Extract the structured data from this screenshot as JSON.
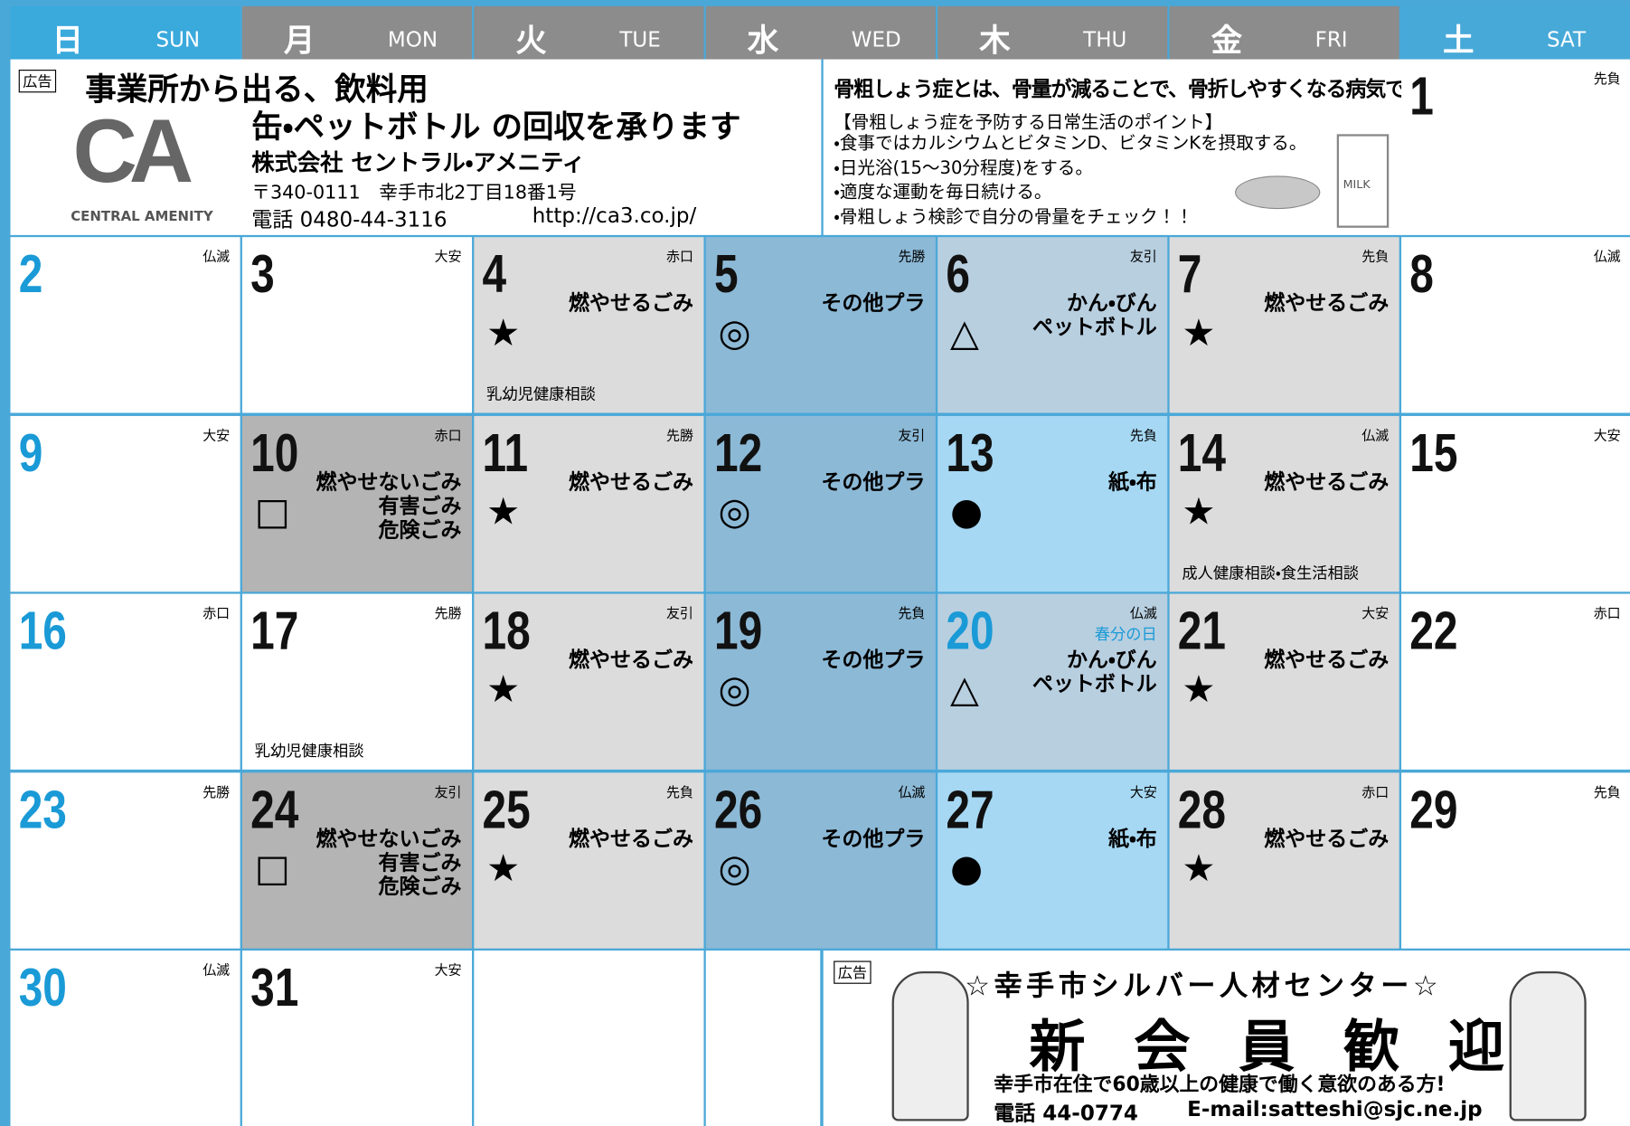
{
  "header": {
    "days": [
      {
        "jp": "日",
        "en": "SUN"
      },
      {
        "jp": "月",
        "en": "MON"
      },
      {
        "jp": "火",
        "en": "TUE"
      },
      {
        "jp": "水",
        "en": "WED"
      },
      {
        "jp": "木",
        "en": "THU"
      },
      {
        "jp": "金",
        "en": "FRI"
      },
      {
        "jp": "土",
        "en": "SAT"
      }
    ]
  },
  "ad_top": {
    "tag": "広告",
    "line1": "事業所から出る、飲料用",
    "line2": "缶・ペットボトル の回収を承ります",
    "company": "株式会社 セントラル・アメニティ",
    "address": "〒340-0111　幸手市北2丁目18番1号",
    "phone": "電話 0480-44-3116",
    "url": "http://ca3.co.jp/",
    "logo": "CA",
    "logo_name": "CENTRAL AMENITY"
  },
  "health": {
    "title": "骨粗しょう症とは、骨量が減ることで、骨折しやすくなる病気です。",
    "heading": "【骨粗しょう症を予防する日常生活のポイント】",
    "points": [
      "・食事ではカルシウムとビタミンD、ビタミンKを摂取する。",
      "・日光浴(15～30分程度)をする。",
      "・適度な運動を毎日続ける。",
      "・骨粗しょう検診で自分の骨量をチェック！！"
    ],
    "milk": "MILK"
  },
  "cells": [
    {
      "row": 0,
      "col": 6,
      "day": "1",
      "rokuyo": "先負",
      "bg": "#ffffff"
    },
    {
      "row": 1,
      "col": 0,
      "day": "2",
      "rokuyo": "仏滅",
      "bg": "#ffffff"
    },
    {
      "row": 1,
      "col": 1,
      "day": "3",
      "rokuyo": "大安",
      "bg": "#ffffff"
    },
    {
      "row": 1,
      "col": 2,
      "day": "4",
      "rokuyo": "赤口",
      "items": [
        "燃やせるごみ"
      ],
      "mark": "★",
      "note": "乳幼児健康相談",
      "bg": "#dcdcdc"
    },
    {
      "row": 1,
      "col": 3,
      "day": "5",
      "rokuyo": "先勝",
      "items": [
        "その他プラ"
      ],
      "mark": "◎",
      "bg": "#8cb9d6"
    },
    {
      "row": 1,
      "col": 4,
      "day": "6",
      "rokuyo": "友引",
      "items": [
        "かん・びん",
        "ペットボトル"
      ],
      "mark": "△",
      "bg": "#b8cfe0"
    },
    {
      "row": 1,
      "col": 5,
      "day": "7",
      "rokuyo": "先負",
      "items": [
        "燃やせるごみ"
      ],
      "mark": "★",
      "bg": "#dcdcdc"
    },
    {
      "row": 1,
      "col": 6,
      "day": "8",
      "rokuyo": "仏滅",
      "bg": "#ffffff"
    },
    {
      "row": 2,
      "col": 0,
      "day": "9",
      "rokuyo": "大安",
      "bg": "#ffffff"
    },
    {
      "row": 2,
      "col": 1,
      "day": "10",
      "rokuyo": "赤口",
      "items": [
        "燃やせないごみ",
        "有害ごみ",
        "危険ごみ"
      ],
      "mark": "□",
      "bg": "#b4b4b4"
    },
    {
      "row": 2,
      "col": 2,
      "day": "11",
      "rokuyo": "先勝",
      "items": [
        "燃やせるごみ"
      ],
      "mark": "★",
      "bg": "#dcdcdc"
    },
    {
      "row": 2,
      "col": 3,
      "day": "12",
      "rokuyo": "友引",
      "items": [
        "その他プラ"
      ],
      "mark": "◎",
      "bg": "#8cb9d6"
    },
    {
      "row": 2,
      "col": 4,
      "day": "13",
      "rokuyo": "先負",
      "items": [
        "紙・布"
      ],
      "mark": "●",
      "bg": "#a6d8f3"
    },
    {
      "row": 2,
      "col": 5,
      "day": "14",
      "rokuyo": "仏滅",
      "items": [
        "燃やせるごみ"
      ],
      "mark": "★",
      "note": "成人健康相談・食生活相談",
      "bg": "#dcdcdc"
    },
    {
      "row": 2,
      "col": 6,
      "day": "15",
      "rokuyo": "大安",
      "bg": "#ffffff"
    },
    {
      "row": 3,
      "col": 0,
      "day": "16",
      "rokuyo": "赤口",
      "bg": "#ffffff"
    },
    {
      "row": 3,
      "col": 1,
      "day": "17",
      "rokuyo": "先勝",
      "note": "乳幼児健康相談",
      "bg": "#ffffff"
    },
    {
      "row": 3,
      "col": 2,
      "day": "18",
      "rokuyo": "友引",
      "items": [
        "燃やせるごみ"
      ],
      "mark": "★",
      "bg": "#dcdcdc"
    },
    {
      "row": 3,
      "col": 3,
      "day": "19",
      "rokuyo": "先負",
      "items": [
        "その他プラ"
      ],
      "mark": "◎",
      "bg": "#8cb9d6"
    },
    {
      "row": 3,
      "col": 4,
      "day": "20",
      "rokuyo": "仏滅",
      "holiday": "春分の日",
      "items": [
        "かん・びん",
        "ペットボトル"
      ],
      "mark": "△",
      "bg": "#b8cfe0"
    },
    {
      "row": 3,
      "col": 5,
      "day": "21",
      "rokuyo": "大安",
      "items": [
        "燃やせるごみ"
      ],
      "mark": "★",
      "bg": "#dcdcdc"
    },
    {
      "row": 3,
      "col": 6,
      "day": "22",
      "rokuyo": "赤口",
      "bg": "#ffffff"
    },
    {
      "row": 4,
      "col": 0,
      "day": "23",
      "rokuyo": "先勝",
      "bg": "#ffffff"
    },
    {
      "row": 4,
      "col": 1,
      "day": "24",
      "rokuyo": "友引",
      "items": [
        "燃やせないごみ",
        "有害ごみ",
        "危険ごみ"
      ],
      "mark": "□",
      "bg": "#b4b4b4"
    },
    {
      "row": 4,
      "col": 2,
      "day": "25",
      "rokuyo": "先負",
      "items": [
        "燃やせるごみ"
      ],
      "mark": "★",
      "bg": "#dcdcdc"
    },
    {
      "row": 4,
      "col": 3,
      "day": "26",
      "rokuyo": "仏滅",
      "items": [
        "その他プラ"
      ],
      "mark": "◎",
      "bg": "#8cb9d6"
    },
    {
      "row": 4,
      "col": 4,
      "day": "27",
      "rokuyo": "大安",
      "items": [
        "紙・布"
      ],
      "mark": "●",
      "bg": "#a6d8f3"
    },
    {
      "row": 4,
      "col": 5,
      "day": "28",
      "rokuyo": "赤口",
      "items": [
        "燃やせるごみ"
      ],
      "mark": "★",
      "bg": "#dcdcdc"
    },
    {
      "row": 4,
      "col": 6,
      "day": "29",
      "rokuyo": "先負",
      "bg": "#ffffff"
    },
    {
      "row": 5,
      "col": 0,
      "day": "30",
      "rokuyo": "仏滅",
      "bg": "#ffffff"
    },
    {
      "row": 5,
      "col": 1,
      "day": "31",
      "rokuyo": "大安",
      "bg": "#ffffff"
    }
  ],
  "ad_bottom": {
    "tag": "広告",
    "title": "☆幸手市シルバー人材センター☆",
    "headline": "新 会 員 歓 迎 ！",
    "desc": "幸手市在住で60歳以上の健康で働く意欲のある方!",
    "phone": "電話 44-0774",
    "email": "E-mail:satteshi@sjc.ne.jp"
  }
}
